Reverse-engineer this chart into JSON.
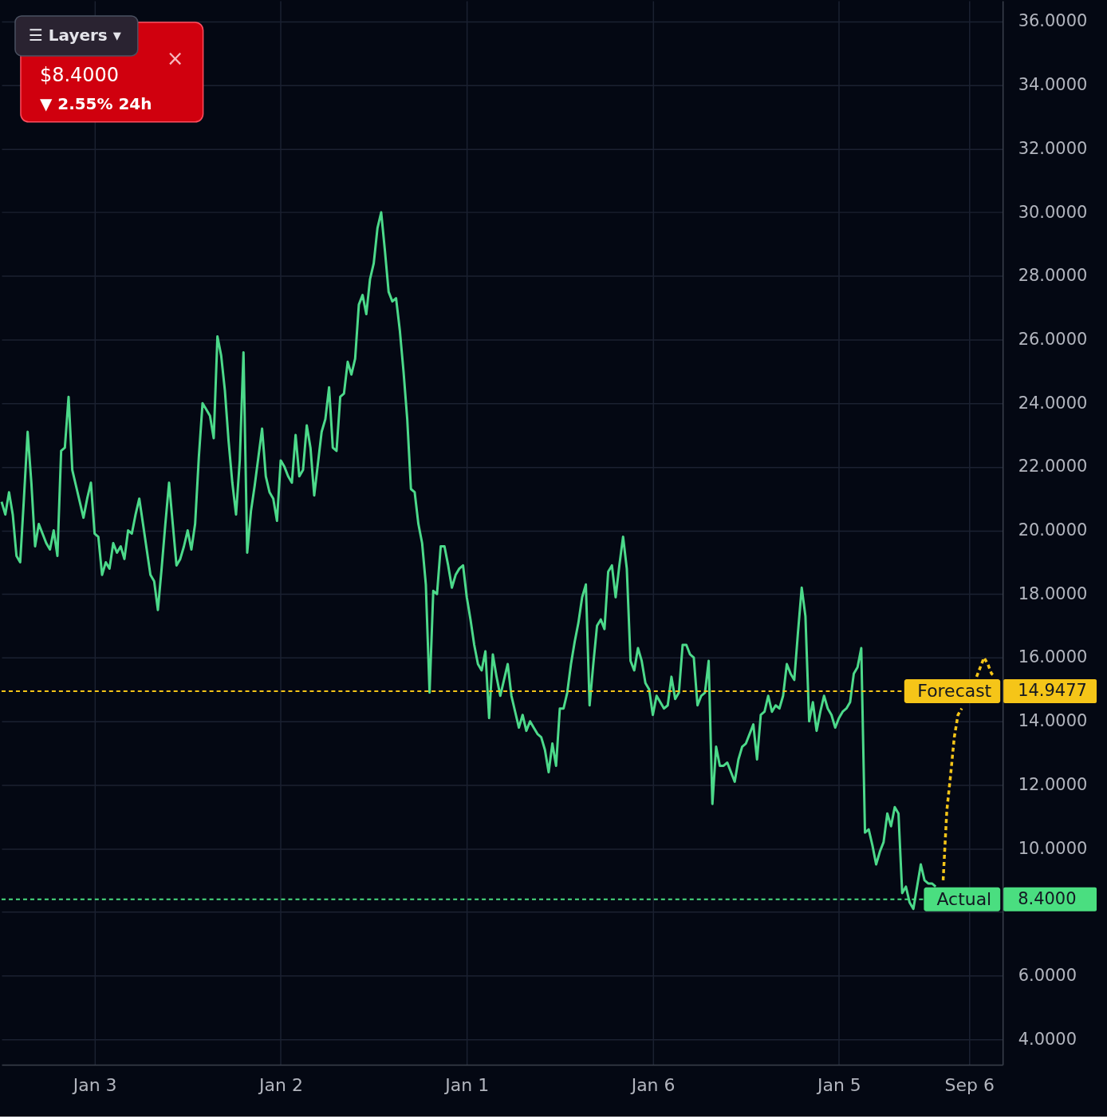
{
  "chart_data": {
    "type": "line",
    "annotations": [
      "☰ Layers ▾",
      "$8.4000",
      "▼ 2.55% 24h",
      "×",
      "14.9477",
      "8.4000"
    ],
    "categories": [
      null,
      null,
      null,
      null,
      null,
      null,
      null,
      null,
      null,
      null,
      null,
      null,
      null,
      null,
      null,
      null,
      null,
      null,
      null,
      null,
      null,
      null,
      null,
      null,
      null,
      "Jan 3",
      null,
      null,
      null,
      null,
      null,
      null,
      null,
      null,
      null,
      null,
      null,
      null,
      null,
      null,
      null,
      null,
      null,
      null,
      null,
      null,
      null,
      null,
      null,
      null,
      null,
      null,
      null,
      null,
      null,
      null,
      null,
      null,
      null,
      null,
      null,
      null,
      null,
      null,
      null,
      null,
      null,
      null,
      null,
      null,
      null,
      null,
      null,
      null,
      null,
      "Jan 2",
      null,
      null,
      null,
      null,
      null,
      null,
      null,
      null,
      null,
      null,
      null,
      null,
      null,
      null,
      null,
      null,
      null,
      null,
      null,
      null,
      null,
      null,
      null,
      null,
      null,
      null,
      null,
      null,
      null,
      null,
      null,
      null,
      null,
      null,
      null,
      null,
      null,
      null,
      null,
      null,
      null,
      null,
      null,
      null,
      null,
      null,
      null,
      null,
      null,
      "Jan 1",
      null,
      null,
      null,
      null,
      null,
      null,
      null,
      null,
      null,
      null,
      null,
      null,
      null,
      null,
      null,
      null,
      null,
      null,
      null,
      null,
      null,
      null,
      null,
      null,
      null,
      null,
      null,
      null,
      null,
      null,
      null,
      null,
      null,
      null,
      null,
      null,
      null,
      null,
      null,
      null,
      null,
      null,
      null,
      null,
      null,
      null,
      null,
      null,
      null,
      "Jan 6",
      null,
      null,
      null,
      null,
      null,
      null,
      null,
      null,
      null,
      null,
      null,
      null,
      null,
      null,
      null,
      null,
      null,
      null,
      null,
      null,
      null,
      null,
      null,
      null,
      null,
      null,
      null,
      null,
      null,
      null,
      null,
      null,
      null,
      null,
      null,
      null,
      null,
      null,
      null,
      null,
      null,
      null,
      null,
      null,
      null,
      null,
      null,
      null,
      null,
      "Jan 5",
      null,
      null,
      null,
      null,
      null,
      null,
      null,
      null,
      null,
      null,
      null,
      null,
      null,
      null,
      null,
      null,
      null,
      null,
      null,
      null,
      null,
      null,
      null,
      null,
      null,
      null,
      null,
      null,
      null,
      null,
      null,
      null,
      null,
      null,
      "Sep 6",
      null,
      null,
      null,
      null,
      null,
      null,
      null,
      null,
      null
    ],
    "ylim": [
      3.2,
      36.65
    ],
    "yticks": [
      {
        "value": 4,
        "label": "4.0000"
      },
      {
        "value": 6,
        "label": "6.0000"
      },
      {
        "value": 8,
        "label": null
      },
      {
        "value": 10,
        "label": "10.0000"
      },
      {
        "value": 12,
        "label": "12.0000"
      },
      {
        "value": 14,
        "label": "14.0000"
      },
      {
        "value": 16,
        "label": "16.0000"
      },
      {
        "value": 18,
        "label": "18.0000"
      },
      {
        "value": 20,
        "label": "20.0000"
      },
      {
        "value": 22,
        "label": "22.0000"
      },
      {
        "value": 24,
        "label": "24.0000"
      },
      {
        "value": 26,
        "label": "26.0000"
      },
      {
        "value": 28,
        "label": "28.0000"
      },
      {
        "value": 30,
        "label": "30.0000"
      },
      {
        "value": 32,
        "label": "32.0000"
      },
      {
        "value": 34,
        "label": "34.0000"
      },
      {
        "value": 36,
        "label": "36.0000"
      }
    ],
    "grid": true,
    "series": [
      {
        "color": "#4cd98a",
        "line_style": "solid",
        "values": [
          20.9,
          20.5,
          21.2,
          20.5,
          19.2,
          19.0,
          21.0,
          23.1,
          21.5,
          19.5,
          20.2,
          19.9,
          19.6,
          19.4,
          20.0,
          19.2,
          22.5,
          22.6,
          24.2,
          21.9,
          21.4,
          20.9,
          20.4,
          21.0,
          21.5,
          19.9,
          19.8,
          18.6,
          19.0,
          18.8,
          19.6,
          19.3,
          19.5,
          19.1,
          20.0,
          19.9,
          20.5,
          21.0,
          20.2,
          19.4,
          18.6,
          18.4,
          17.5,
          18.8,
          20.2,
          21.5,
          20.2,
          18.9,
          19.1,
          19.5,
          20.0,
          19.4,
          20.2,
          22.3,
          24.0,
          23.8,
          23.6,
          22.9,
          26.1,
          25.5,
          24.4,
          22.8,
          21.5,
          20.5,
          22.2,
          25.6,
          19.3,
          20.6,
          21.4,
          22.3,
          23.2,
          21.7,
          21.2,
          21.0,
          20.3,
          22.2,
          22.0,
          21.7,
          21.5,
          23.0,
          21.7,
          21.9,
          23.3,
          22.6,
          21.1,
          22.1,
          23.1,
          23.5,
          24.5,
          22.6,
          22.5,
          24.2,
          24.3,
          25.3,
          24.9,
          25.4,
          27.1,
          27.4,
          26.8,
          27.9,
          28.4,
          29.5,
          30.0,
          28.8,
          27.5,
          27.2,
          27.3,
          26.3,
          25.0,
          23.5,
          21.3,
          21.2,
          20.2,
          19.6,
          18.3,
          14.9,
          18.1,
          18.0,
          19.5,
          19.5,
          18.9,
          18.2,
          18.6,
          18.8,
          18.9,
          17.9,
          17.2,
          16.4,
          15.8,
          15.6,
          16.2,
          14.1,
          16.1,
          15.4,
          14.8,
          15.3,
          15.8,
          14.8,
          14.3,
          13.8,
          14.2,
          13.7,
          14.0,
          13.8,
          13.6,
          13.5,
          13.1,
          12.4,
          13.3,
          12.6,
          14.4,
          14.4,
          14.9,
          15.8,
          16.5,
          17.1,
          17.9,
          18.3,
          14.5,
          15.8,
          17.0,
          17.2,
          16.9,
          18.7,
          18.9,
          17.9,
          18.9,
          19.8,
          18.8,
          15.9,
          15.6,
          16.3,
          15.9,
          15.2,
          15.0,
          14.2,
          14.8,
          14.6,
          14.4,
          14.5,
          15.4,
          14.7,
          14.9,
          16.4,
          16.4,
          16.1,
          16.0,
          14.5,
          14.8,
          14.9,
          15.9,
          11.4,
          13.2,
          12.6,
          12.6,
          12.7,
          12.4,
          12.1,
          12.8,
          13.2,
          13.3,
          13.6,
          13.9,
          12.8,
          14.2,
          14.3,
          14.8,
          14.3,
          14.5,
          14.4,
          14.8,
          15.8,
          15.5,
          15.3,
          16.8,
          18.2,
          17.3,
          14.0,
          14.6,
          13.7,
          14.3,
          14.8,
          14.4,
          14.2,
          13.8,
          14.1,
          14.3,
          14.4,
          14.6,
          15.5,
          15.7,
          16.3,
          10.5,
          10.6,
          10.1,
          9.5,
          9.9,
          10.2,
          11.1,
          10.7,
          11.3,
          11.1,
          8.6,
          8.8,
          8.3,
          8.1,
          8.8,
          9.5,
          9.0,
          8.9,
          8.9,
          8.8,
          null,
          null,
          null,
          null,
          null,
          null,
          null,
          null,
          null,
          null,
          null,
          null,
          null,
          null,
          null,
          null,
          null,
          null
        ]
      },
      {
        "color": "#f5c518",
        "line_style": "dotted",
        "values": [
          null,
          null,
          null,
          null,
          null,
          null,
          null,
          null,
          null,
          null,
          null,
          null,
          null,
          null,
          null,
          null,
          null,
          null,
          null,
          null,
          null,
          null,
          null,
          null,
          null,
          null,
          null,
          null,
          null,
          null,
          null,
          null,
          null,
          null,
          null,
          null,
          null,
          null,
          null,
          null,
          null,
          null,
          null,
          null,
          null,
          null,
          null,
          null,
          null,
          null,
          null,
          null,
          null,
          null,
          null,
          null,
          null,
          null,
          null,
          null,
          null,
          null,
          null,
          null,
          null,
          null,
          null,
          null,
          null,
          null,
          null,
          null,
          null,
          null,
          null,
          null,
          null,
          null,
          null,
          null,
          null,
          null,
          null,
          null,
          null,
          null,
          null,
          null,
          null,
          null,
          null,
          null,
          null,
          null,
          null,
          null,
          null,
          null,
          null,
          null,
          null,
          null,
          null,
          null,
          null,
          null,
          null,
          null,
          null,
          null,
          null,
          null,
          null,
          null,
          null,
          null,
          null,
          null,
          null,
          null,
          null,
          null,
          null,
          null,
          null,
          null,
          null,
          null,
          null,
          null,
          null,
          null,
          null,
          null,
          null,
          null,
          null,
          null,
          null,
          null,
          null,
          null,
          null,
          null,
          null,
          null,
          null,
          null,
          null,
          null,
          null,
          null,
          null,
          null,
          null,
          null,
          null,
          null,
          null,
          null,
          null,
          null,
          null,
          null,
          null,
          null,
          null,
          null,
          null,
          null,
          null,
          null,
          null,
          null,
          null,
          null,
          null,
          null,
          null,
          null,
          null,
          null,
          null,
          null,
          null,
          null,
          null,
          null,
          null,
          null,
          null,
          null,
          null,
          null,
          null,
          null,
          null,
          null,
          null,
          null,
          null,
          null,
          null,
          null,
          null,
          null,
          null,
          null,
          null,
          null,
          null,
          null,
          null,
          null,
          null,
          null,
          null,
          null,
          null,
          null,
          null,
          null,
          null,
          null,
          null,
          null,
          null,
          null,
          null,
          null,
          null,
          null,
          null,
          null,
          null,
          null,
          null,
          null,
          null,
          null,
          null,
          null,
          null,
          null,
          null,
          null,
          null,
          null,
          null,
          null,
          null,
          null,
          null,
          9.0,
          11.2,
          12.3,
          13.5,
          14.2,
          14.4,
          null,
          null,
          null,
          15.4,
          15.7,
          16.0,
          15.8,
          15.5,
          15.4,
          null,
          null
        ]
      }
    ],
    "ref_lines": [
      {
        "axis": "y",
        "value": 14.9477,
        "label": "Forecast",
        "color": "#f5c518",
        "line_style": "dotted"
      },
      {
        "axis": "y",
        "value": 8.4,
        "label": "Actual",
        "color": "#4ade80",
        "line_style": "dotted"
      }
    ]
  }
}
